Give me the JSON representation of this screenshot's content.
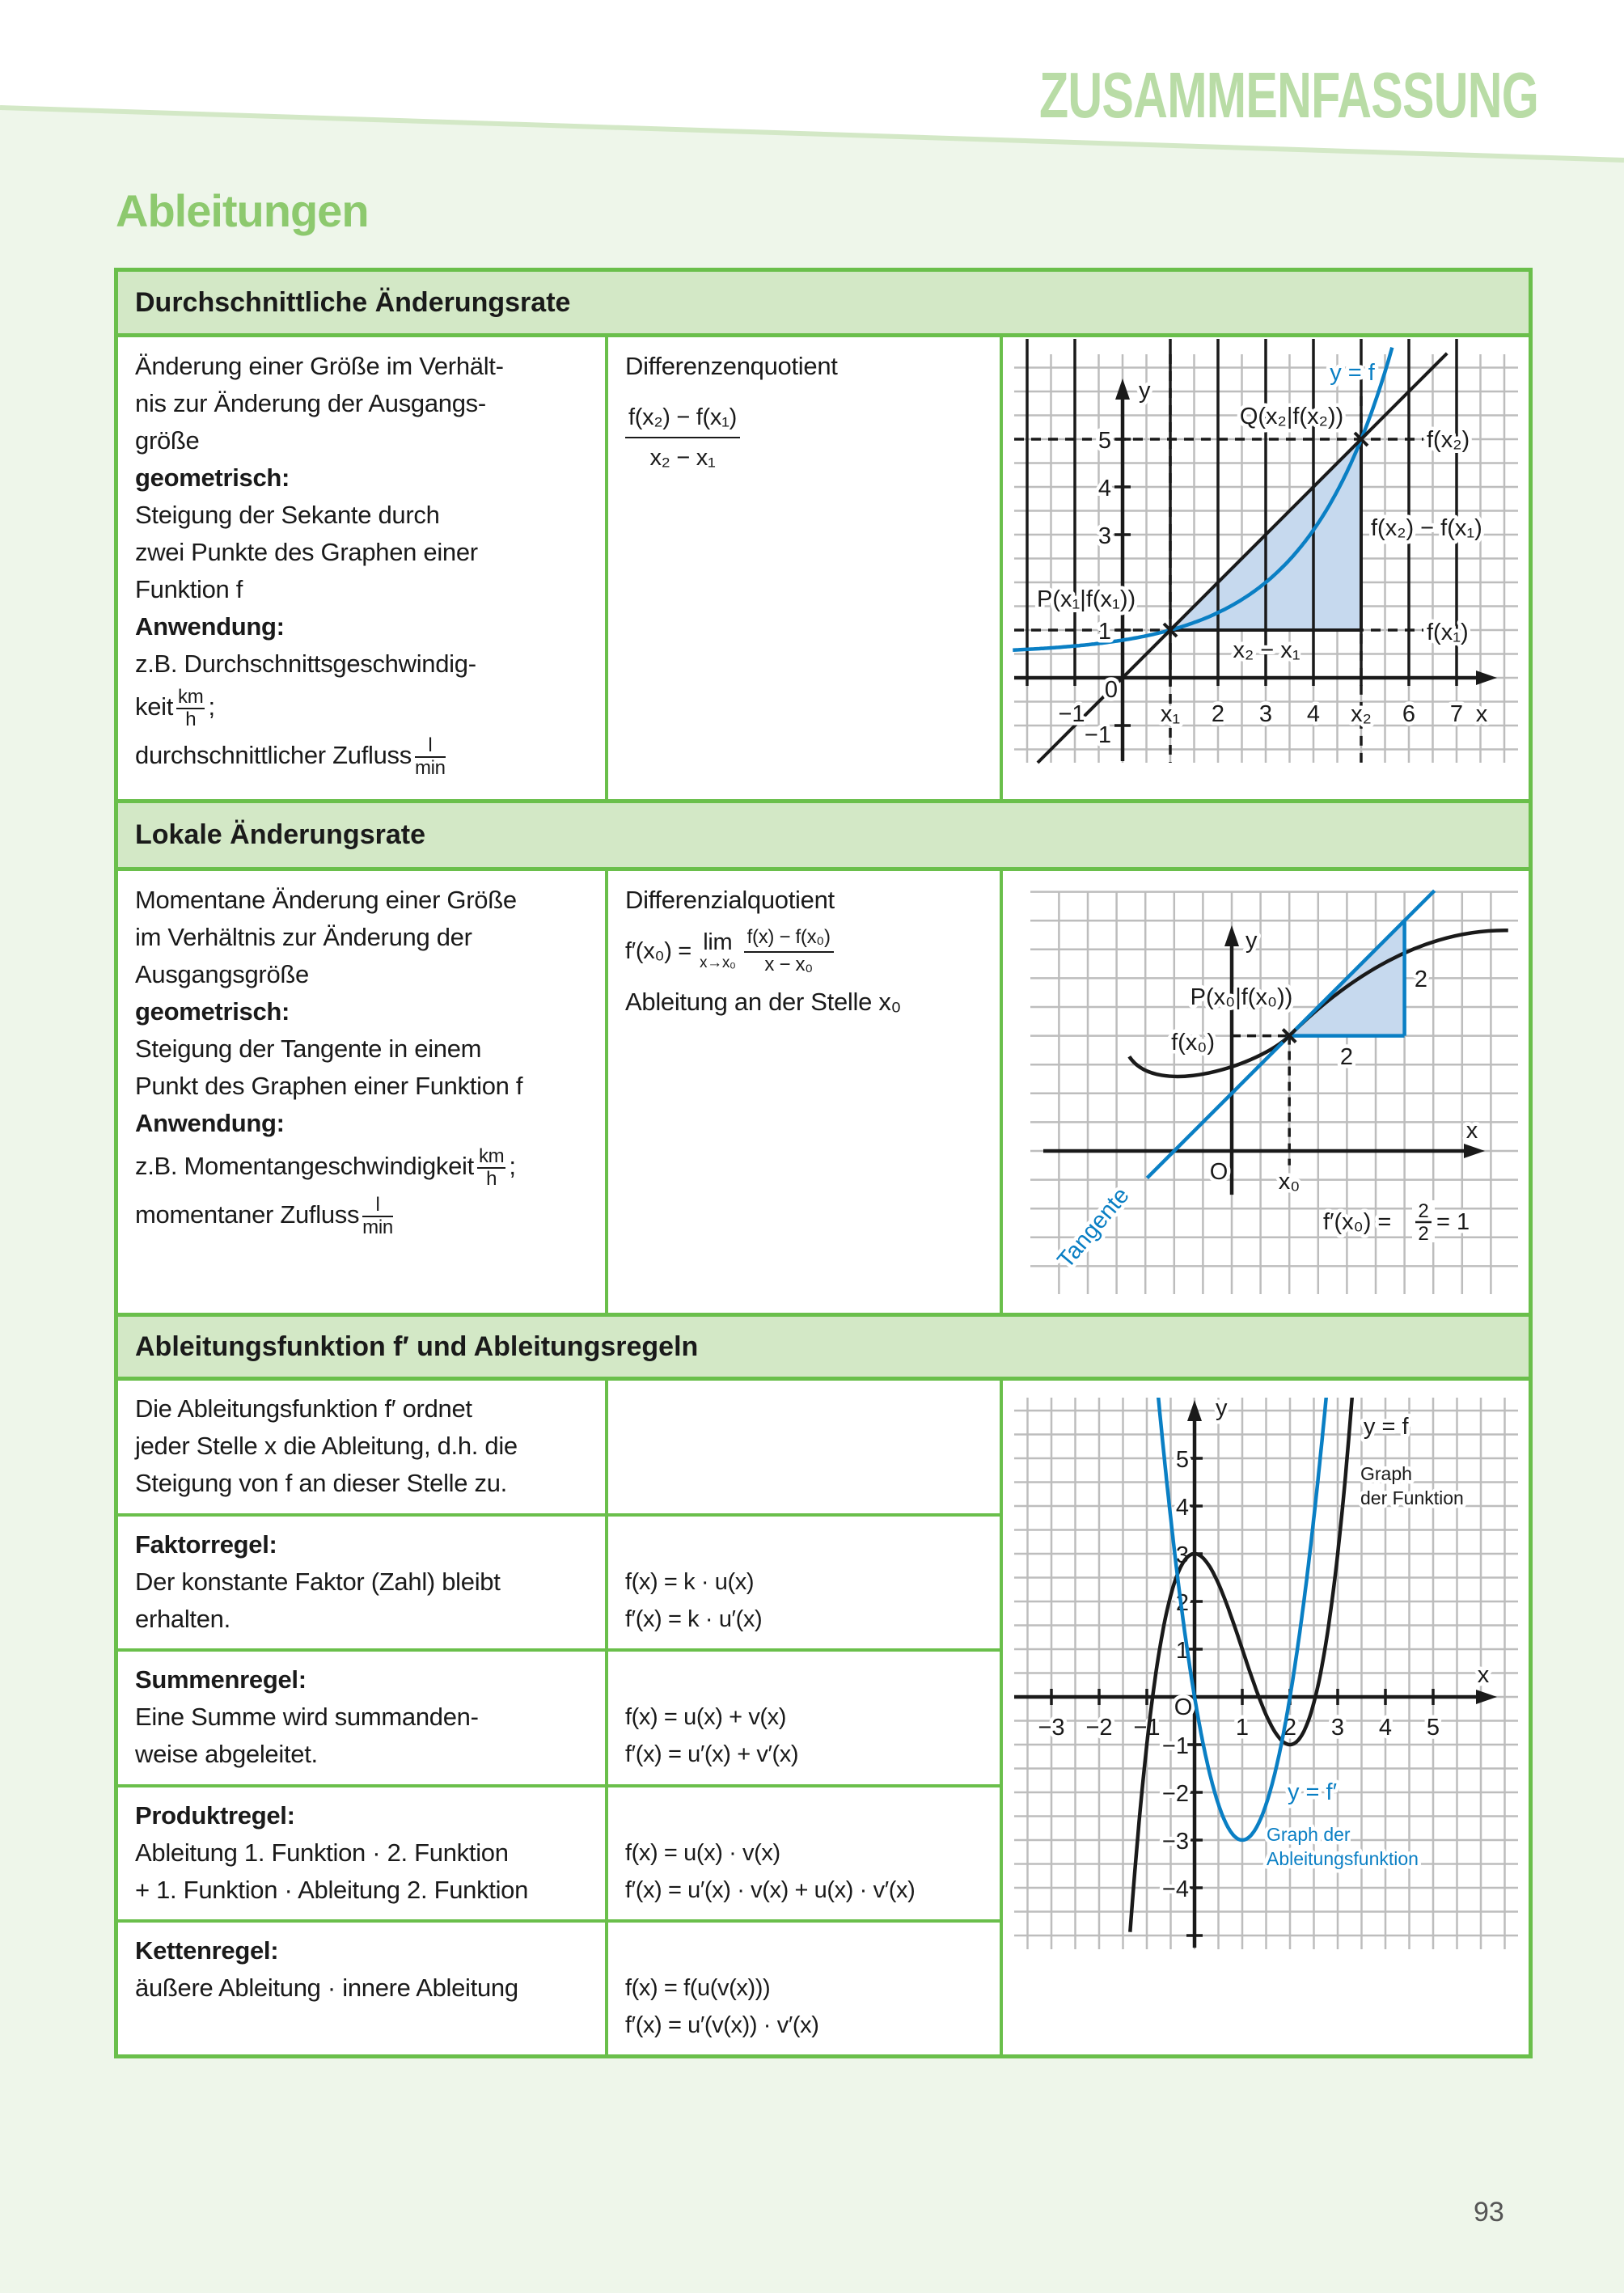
{
  "header": {
    "section": "ZUSAMMENFASSUNG",
    "title": "Ableitungen"
  },
  "avg": {
    "heading": "Durchschnittliche Änderungsrate",
    "desc_lines": [
      "Änderung einer Größe im Verhält-",
      "nis zur Änderung der Ausgangs-",
      "größe"
    ],
    "geo_label": "geometrisch:",
    "geo_lines": [
      "Steigung der Sekante durch",
      "zwei Punkte des Graphen einer",
      "Funktion f"
    ],
    "app_label": "Anwendung:",
    "app_line1": "z.B. Durchschnittsgeschwindig-",
    "app_line2": "keit",
    "unit1_num": "km",
    "unit1_den": "h",
    "sep": ";",
    "app_line3": "durchschnittlicher Zufluss",
    "unit2_num": "l",
    "unit2_den": "min",
    "formula_title": "Differenzenquotient",
    "formula_num": "f(x₂) − f(x₁)",
    "formula_den": "x₂ − x₁",
    "graph": {
      "y_axis": "y",
      "x_axis": "x",
      "curve": "y = f",
      "Q": "Q(x₂|f(x₂))",
      "P": "P(x₁|f(x₁))",
      "fx2": "f(x₂)",
      "fx1": "f(x₁)",
      "diff_y": "f(x₂) − f(x₁)",
      "diff_x": "x₂ − x₁",
      "origin": "0",
      "x_ticks": [
        "−1",
        "x₁",
        "2",
        "3",
        "4",
        "x₂",
        "6",
        "7"
      ],
      "y_ticks": [
        "5",
        "4",
        "3",
        "1",
        "−1"
      ]
    }
  },
  "local": {
    "heading": "Lokale Änderungsrate",
    "desc_lines": [
      "Momentane Änderung einer Größe",
      "im Verhältnis zur Änderung der",
      "Ausgangsgröße"
    ],
    "geo_label": "geometrisch:",
    "geo_lines": [
      "Steigung der Tangente in einem",
      "Punkt des Graphen einer Funktion f"
    ],
    "app_label": "Anwendung:",
    "app_line1": "z.B. Momentangeschwindigkeit",
    "unit1_num": "km",
    "unit1_den": "h",
    "sep": ";",
    "app_line2": "momentaner Zufluss",
    "unit2_num": "l",
    "unit2_den": "min",
    "formula_title": "Differenzialquotient",
    "formula_lhs": "f′(x₀) =",
    "formula_lim": "lim",
    "formula_lim_sub": "x→x₀",
    "formula_num": "f(x) − f(x₀)",
    "formula_den": "x − x₀",
    "formula_note": "Ableitung an der Stelle x₀",
    "graph": {
      "y_axis": "y",
      "x_axis": "x",
      "P": "P(x₀|f(x₀))",
      "fx0": "f(x₀)",
      "rise": "2",
      "run": "2",
      "origin": "O",
      "x0": "x₀",
      "tangent": "Tangente",
      "slope_lhs": "f′(x₀) =",
      "slope_num": "2",
      "slope_den": "2",
      "slope_rhs": "= 1"
    }
  },
  "deriv": {
    "heading": "Ableitungsfunktion f′ und Ableitungsregeln",
    "intro_lines": [
      "Die Ableitungsfunktion f′ ordnet",
      "jeder Stelle x die Ableitung, d.h. die",
      "Steigung von f an dieser Stelle zu."
    ],
    "rules": [
      {
        "name": "Faktorregel:",
        "lines": [
          "Der konstante Faktor (Zahl) bleibt",
          "erhalten."
        ],
        "formulas": [
          "f(x) = k · u(x)",
          "f′(x) = k · u′(x)"
        ]
      },
      {
        "name": "Summenregel:",
        "lines": [
          "Eine Summe wird summanden-",
          "weise abgeleitet."
        ],
        "formulas": [
          "f(x) = u(x) + v(x)",
          "f′(x) = u′(x) + v′(x)"
        ]
      },
      {
        "name": "Produktregel:",
        "lines": [
          "Ableitung 1. Funktion · 2. Funktion",
          "+ 1. Funktion · Ableitung 2. Funktion"
        ],
        "formulas": [
          "f(x) = u(x) · v(x)",
          "f′(x) = u′(x) · v(x) + u(x) · v′(x)"
        ]
      },
      {
        "name": "Kettenregel:",
        "lines": [
          "äußere Ableitung · innere Ableitung"
        ],
        "formulas": [
          "f(x) = f(u(v(x)))",
          "f′(x) = u′(v(x)) · v′(x)"
        ]
      }
    ],
    "graph": {
      "y_axis": "y",
      "x_axis": "x",
      "origin": "O",
      "x_ticks": [
        "−3",
        "−2",
        "−1",
        "1",
        "2",
        "3",
        "4",
        "5"
      ],
      "y_ticks": [
        "5",
        "4",
        "3",
        "2",
        "1",
        "−1",
        "−2",
        "−3",
        "−4"
      ],
      "f_label": "y = f",
      "f_caption": [
        "Graph",
        "der Funktion"
      ],
      "fprime_label": "y = f′",
      "fprime_caption": [
        "Graph der",
        "Ableitungsfunktion"
      ]
    }
  },
  "colors": {
    "accent_green": "#6abf4b",
    "header_bg": "#d3e8c6",
    "title_green": "#8dc96e",
    "curve_blue": "#0a7fc4",
    "fill_blue": "#c6d9ee"
  },
  "page_number": "93"
}
